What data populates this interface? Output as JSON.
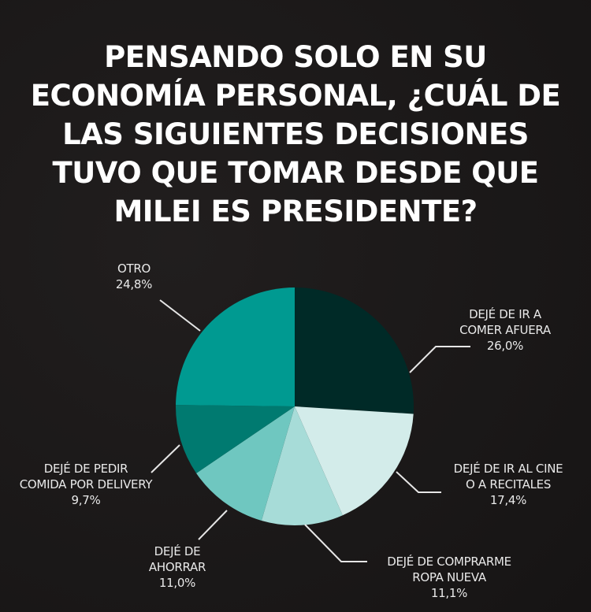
{
  "title_lines": [
    "PENSANDO SOLO EN SU",
    "ECONOMÍA PERSONAL, ¿CUÁL DE",
    "LAS SIGUIENTES DECISIONES",
    "TUVO QUE TOMAR DESDE QUE",
    "MILEI ES PRESIDENTE?"
  ],
  "chart_data": {
    "type": "pie",
    "title": "PENSANDO SOLO EN SU ECONOMÍA PERSONAL, ¿CUÁL DE LAS SIGUIENTES DECISIONES TUVO QUE TOMAR DESDE QUE MILEI ES PRESIDENTE?",
    "start": "12 o'clock, clockwise",
    "slices": [
      {
        "label_lines": [
          "DEJÉ DE IR A",
          "COMER AFUERA"
        ],
        "value": 26.0,
        "value_label": "26,0%",
        "color": "#002a27"
      },
      {
        "label_lines": [
          "DEJÉ DE IR AL CINE",
          "O A RECITALES"
        ],
        "value": 17.4,
        "value_label": "17,4%",
        "color": "#d3ecea"
      },
      {
        "label_lines": [
          "DEJÉ DE COMPRARME",
          "ROPA NUEVA"
        ],
        "value": 11.1,
        "value_label": "11,1%",
        "color": "#a7dcd8"
      },
      {
        "label_lines": [
          "DEJÉ DE",
          "AHORRAR"
        ],
        "value": 11.0,
        "value_label": "11,0%",
        "color": "#6fc7c0"
      },
      {
        "label_lines": [
          "DEJÉ DE PEDIR",
          "COMIDA POR DELIVERY"
        ],
        "value": 9.7,
        "value_label": "9,7%",
        "color": "#007a70"
      },
      {
        "label_lines": [
          "OTRO"
        ],
        "value": 24.8,
        "value_label": "24,8%",
        "color": "#009a91"
      }
    ]
  }
}
